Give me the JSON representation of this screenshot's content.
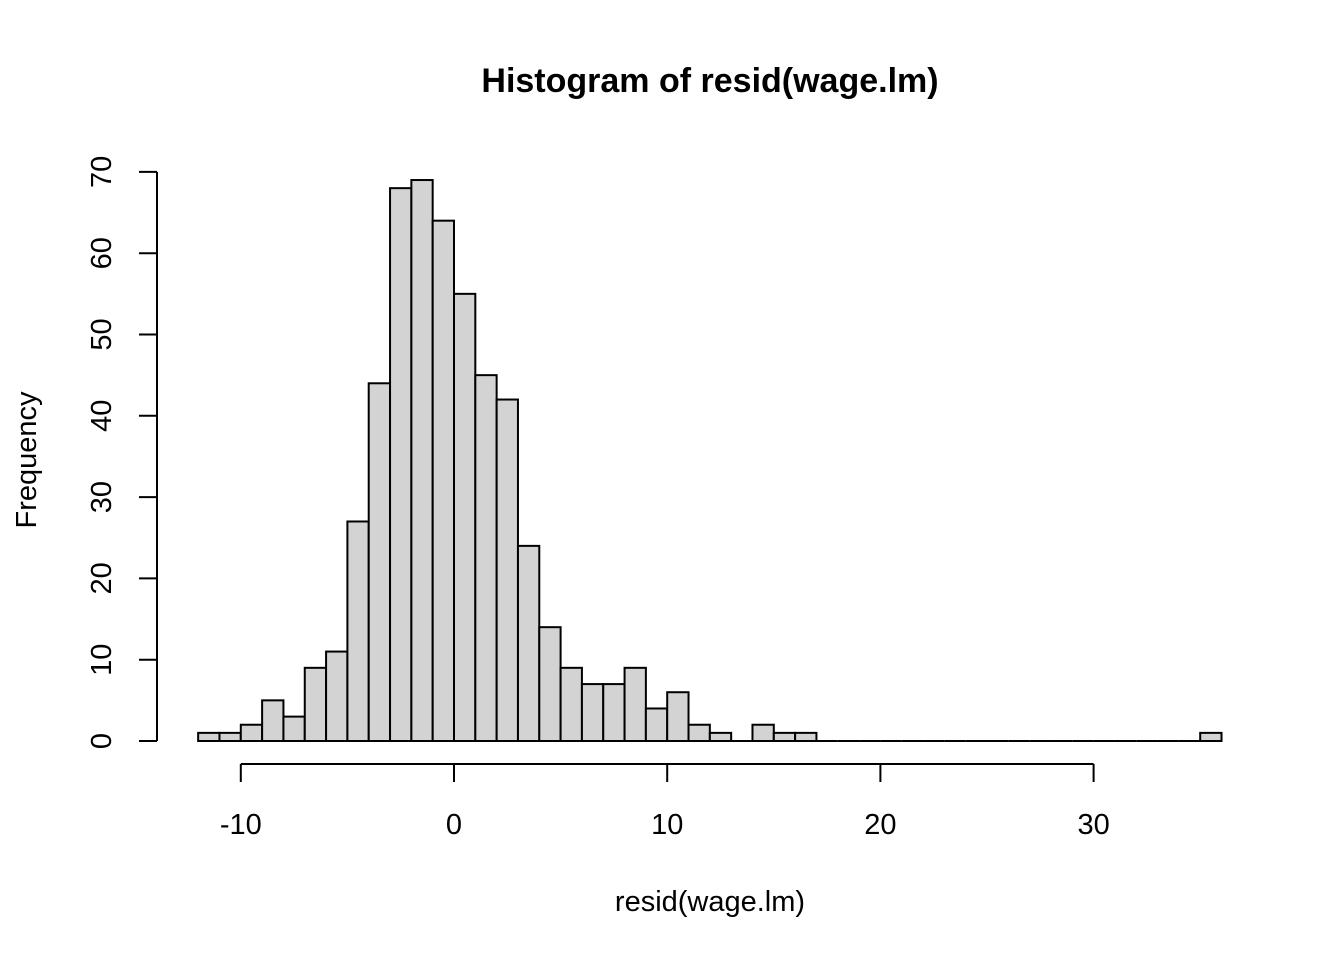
{
  "chart_data": {
    "type": "bar",
    "title": "Histogram of resid(wage.lm)",
    "xlabel": "resid(wage.lm)",
    "ylabel": "Frequency",
    "bin_width": 1,
    "bin_start": -12,
    "bin_edges_start": [
      -12,
      -11,
      -10,
      -9,
      -8,
      -7,
      -6,
      -5,
      -4,
      -3,
      -2,
      -1,
      0,
      1,
      2,
      3,
      4,
      5,
      6,
      7,
      8,
      9,
      10,
      11,
      12,
      13,
      14,
      15,
      16,
      17,
      18,
      19,
      20,
      21,
      22,
      23,
      24,
      25,
      26,
      27,
      28,
      29,
      30,
      31,
      32,
      33,
      34,
      35
    ],
    "values": [
      1,
      1,
      2,
      5,
      3,
      9,
      11,
      27,
      44,
      68,
      69,
      64,
      55,
      45,
      42,
      24,
      14,
      9,
      7,
      7,
      9,
      4,
      6,
      2,
      1,
      0,
      2,
      1,
      1,
      0,
      0,
      0,
      0,
      0,
      0,
      0,
      0,
      0,
      0,
      0,
      0,
      0,
      0,
      0,
      0,
      0,
      0,
      1
    ],
    "x_ticks": [
      -10,
      0,
      10,
      20,
      30
    ],
    "x_tick_labels": [
      "-10",
      "0",
      "10",
      "20",
      "30"
    ],
    "y_ticks": [
      0,
      10,
      20,
      30,
      40,
      50,
      60,
      70
    ],
    "y_tick_labels": [
      "0",
      "10",
      "20",
      "30",
      "40",
      "50",
      "60",
      "70"
    ],
    "xlim": [
      -12,
      36
    ],
    "ylim": [
      0,
      70
    ],
    "bar_color": "#D3D3D3",
    "grid": false
  }
}
